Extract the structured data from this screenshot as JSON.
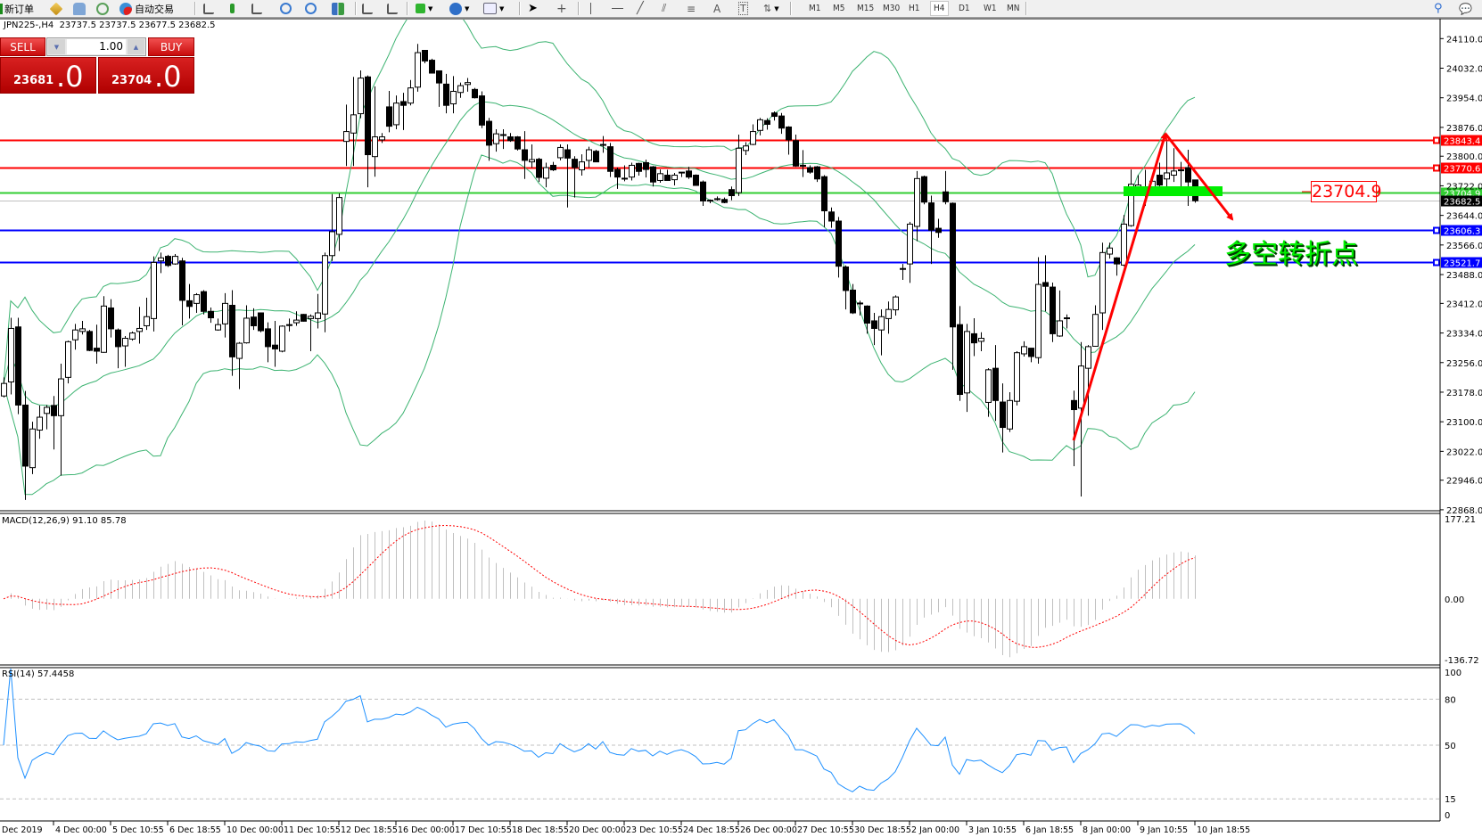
{
  "toolbar": {
    "new_order": "新订单",
    "auto_trade": "自动交易",
    "timeframes": [
      "M1",
      "M5",
      "M15",
      "M30",
      "H1",
      "H4",
      "D1",
      "W1",
      "MN"
    ],
    "active_timeframe": "H4",
    "icons": [
      "new-order-icon",
      "market-watch-icon",
      "navigator-icon",
      "signal-icon",
      "auto-trading-icon",
      "bar-chart-icon",
      "candlestick-icon",
      "line-chart-icon",
      "zoom-in-icon",
      "zoom-out-icon",
      "tile-windows-icon",
      "auto-scroll-icon",
      "chart-shift-icon",
      "indicators-icon",
      "periods-icon",
      "templates-icon",
      "cursor-icon",
      "crosshair-icon",
      "vertical-line-icon",
      "horizontal-line-icon",
      "trendline-icon",
      "equidistant-channel-icon",
      "fibonacci-icon",
      "text-icon",
      "text-label-icon",
      "arrows-icon",
      "search-icon",
      "chat-icon"
    ]
  },
  "chart": {
    "title": "JPN225-,H4  23737.5 23737.5 23677.5 23682.5"
  },
  "trade_panel": {
    "sell_label": "SELL",
    "buy_label": "BUY",
    "lot": "1.00",
    "sell_price_main": "23681",
    "sell_price_frac": ".0",
    "buy_price_main": "23704",
    "buy_price_frac": ".0",
    "color": "#d01010"
  },
  "annotations": {
    "text": "多空转折点",
    "price_label": "23704.9",
    "arrow_color": "#ff0000",
    "zone_color": "#00ee00"
  },
  "chart_data": {
    "type": "candlestick",
    "symbol": "JPN225-",
    "timeframe": "H4",
    "ohlc_header": {
      "open": 23737.5,
      "high": 23737.5,
      "low": 23677.5,
      "close": 23682.5
    },
    "ylim": [
      22868.0,
      24140.0
    ],
    "y_ticks": [
      "24110.0",
      "24032.0",
      "23954.0",
      "23876.0",
      "23800.0",
      "23722.0",
      "23644.0",
      "23566.0",
      "23488.0",
      "23412.0",
      "23334.0",
      "23256.0",
      "23178.0",
      "23100.0",
      "23022.0",
      "22946.0",
      "22868.0"
    ],
    "x_ticks": [
      "Dec 2019",
      "4 Dec 00:00",
      "5 Dec 10:55",
      "6 Dec 18:55",
      "10 Dec 00:00",
      "11 Dec 10:55",
      "12 Dec 18:55",
      "16 Dec 00:00",
      "17 Dec 10:55",
      "18 Dec 18:55",
      "20 Dec 00:00",
      "23 Dec 10:55",
      "24 Dec 18:55",
      "26 Dec 00:00",
      "27 Dec 10:55",
      "30 Dec 18:55",
      "2 Jan 00:00",
      "3 Jan 10:55",
      "6 Jan 18:55",
      "8 Jan 00:00",
      "9 Jan 10:55",
      "10 Jan 18:55"
    ],
    "candle_format": [
      "open",
      "high",
      "low",
      "close"
    ],
    "candles": [
      [
        23168,
        23217,
        23164,
        23201
      ],
      [
        23205,
        23374,
        23172,
        23346
      ],
      [
        23350,
        23374,
        23120,
        23144
      ],
      [
        23144,
        23181,
        22894,
        22983
      ],
      [
        22979,
        23100,
        22962,
        23081
      ],
      [
        23078,
        23143,
        23055,
        23112
      ],
      [
        23122,
        23144,
        23080,
        23138
      ],
      [
        23143,
        23168,
        23027,
        23116
      ],
      [
        23116,
        23253,
        22958,
        23213
      ],
      [
        23217,
        23314,
        23201,
        23311
      ],
      [
        23316,
        23358,
        23290,
        23342
      ],
      [
        23338,
        23366,
        23330,
        23345
      ],
      [
        23338,
        23342,
        23286,
        23288
      ],
      [
        23294,
        23356,
        23253,
        23286
      ],
      [
        23283,
        23431,
        23282,
        23405
      ],
      [
        23400,
        23423,
        23322,
        23345
      ],
      [
        23342,
        23346,
        23241,
        23298
      ],
      [
        23300,
        23326,
        23245,
        23320
      ],
      [
        23318,
        23338,
        23314,
        23334
      ],
      [
        23338,
        23403,
        23306,
        23346
      ],
      [
        23353,
        23427,
        23342,
        23377
      ],
      [
        23372,
        23536,
        23338,
        23520
      ],
      [
        23524,
        23546,
        23492,
        23532
      ],
      [
        23536,
        23540,
        23508,
        23512
      ],
      [
        23516,
        23542,
        23514,
        23536
      ],
      [
        23524,
        23532,
        23354,
        23420
      ],
      [
        23419,
        23463,
        23372,
        23404
      ],
      [
        23412,
        23439,
        23387,
        23435
      ],
      [
        23443,
        23447,
        23383,
        23391
      ],
      [
        23391,
        23401,
        23361,
        23374
      ],
      [
        23342,
        23372,
        23340,
        23356
      ],
      [
        23358,
        23439,
        23322,
        23412
      ],
      [
        23407,
        23447,
        23221,
        23271
      ],
      [
        23267,
        23310,
        23186,
        23307
      ],
      [
        23308,
        23407,
        23306,
        23373
      ],
      [
        23376,
        23399,
        23342,
        23353
      ],
      [
        23387,
        23388,
        23336,
        23340
      ],
      [
        23345,
        23362,
        23257,
        23298
      ],
      [
        23302,
        23366,
        23245,
        23292
      ],
      [
        23286,
        23354,
        23283,
        23352
      ],
      [
        23356,
        23372,
        23338,
        23354
      ],
      [
        23361,
        23391,
        23353,
        23368
      ],
      [
        23383,
        23384,
        23364,
        23365
      ],
      [
        23372,
        23383,
        23286,
        23378
      ],
      [
        23372,
        23437,
        23346,
        23387
      ],
      [
        23384,
        23546,
        23336,
        23538
      ],
      [
        23538,
        23700,
        23524,
        23601
      ],
      [
        23594,
        23702,
        23550,
        23691
      ],
      [
        23839,
        23936,
        23774,
        23865
      ],
      [
        23861,
        24009,
        23774,
        23909
      ],
      [
        23912,
        24026,
        23900,
        24006
      ],
      [
        24009,
        24013,
        23718,
        23804
      ],
      [
        23799,
        23984,
        23746,
        23851
      ],
      [
        23843,
        23861,
        23835,
        23851
      ],
      [
        23930,
        23972,
        23863,
        23879
      ],
      [
        23883,
        23960,
        23871,
        23940
      ],
      [
        23944,
        23967,
        23869,
        23934
      ],
      [
        23940,
        24001,
        23934,
        23980
      ],
      [
        23982,
        24096,
        23970,
        24073
      ],
      [
        24079,
        24079,
        24045,
        24051
      ],
      [
        24053,
        24057,
        24018,
        24019
      ],
      [
        24025,
        24025,
        23930,
        23993
      ],
      [
        23990,
        24017,
        23913,
        23934
      ],
      [
        23938,
        24011,
        23913,
        23971
      ],
      [
        23968,
        23994,
        23954,
        23986
      ],
      [
        23989,
        24006,
        23970,
        23994
      ],
      [
        23976,
        23980,
        23952,
        23954
      ],
      [
        23959,
        23971,
        23874,
        23882
      ],
      [
        23892,
        23901,
        23788,
        23829
      ],
      [
        23833,
        23871,
        23812,
        23859
      ],
      [
        23857,
        23871,
        23819,
        23855
      ],
      [
        23851,
        23861,
        23838,
        23841
      ],
      [
        23851,
        23853,
        23815,
        23819
      ],
      [
        23817,
        23866,
        23740,
        23789
      ],
      [
        23785,
        23831,
        23770,
        23791
      ],
      [
        23792,
        23796,
        23732,
        23744
      ],
      [
        23742,
        23783,
        23718,
        23770
      ],
      [
        23776,
        23785,
        23761,
        23764
      ],
      [
        23796,
        23831,
        23789,
        23823
      ],
      [
        23817,
        23831,
        23665,
        23795
      ],
      [
        23792,
        23800,
        23691,
        23770
      ],
      [
        23764,
        23805,
        23749,
        23785
      ],
      [
        23789,
        23825,
        23770,
        23817
      ],
      [
        23813,
        23817,
        23784,
        23785
      ],
      [
        23831,
        23853,
        23809,
        23829
      ],
      [
        23825,
        23835,
        23745,
        23760
      ],
      [
        23765,
        23770,
        23714,
        23745
      ],
      [
        23742,
        23776,
        23734,
        23741
      ],
      [
        23745,
        23783,
        23736,
        23776
      ],
      [
        23781,
        23783,
        23749,
        23760
      ],
      [
        23783,
        23791,
        23744,
        23765
      ],
      [
        23772,
        23774,
        23720,
        23732
      ],
      [
        23736,
        23765,
        23730,
        23754
      ],
      [
        23750,
        23764,
        23736,
        23736
      ],
      [
        23738,
        23756,
        23723,
        23750
      ],
      [
        23758,
        23758,
        23745,
        23757
      ],
      [
        23761,
        23772,
        23740,
        23745
      ],
      [
        23750,
        23752,
        23722,
        23723
      ],
      [
        23732,
        23736,
        23669,
        23682
      ],
      [
        23684,
        23686,
        23676,
        23683
      ],
      [
        23688,
        23694,
        23683,
        23687
      ],
      [
        23686,
        23691,
        23676,
        23678
      ],
      [
        23712,
        23720,
        23684,
        23696
      ],
      [
        23704,
        23857,
        23695,
        23821
      ],
      [
        23815,
        23837,
        23803,
        23827
      ],
      [
        23831,
        23884,
        23829,
        23865
      ],
      [
        23868,
        23901,
        23855,
        23896
      ],
      [
        23894,
        23900,
        23870,
        23884
      ],
      [
        23914,
        23918,
        23894,
        23905
      ],
      [
        23906,
        23914,
        23859,
        23874
      ],
      [
        23877,
        23879,
        23804,
        23843
      ],
      [
        23841,
        23857,
        23772,
        23774
      ],
      [
        23776,
        23816,
        23745,
        23774
      ],
      [
        23770,
        23776,
        23754,
        23758
      ],
      [
        23772,
        23774,
        23732,
        23740
      ],
      [
        23746,
        23750,
        23613,
        23656
      ],
      [
        23653,
        23665,
        23611,
        23629
      ],
      [
        23629,
        23640,
        23480,
        23510
      ],
      [
        23508,
        23512,
        23396,
        23446
      ],
      [
        23447,
        23463,
        23384,
        23387
      ],
      [
        23413,
        23419,
        23380,
        23412
      ],
      [
        23405,
        23407,
        23332,
        23360
      ],
      [
        23366,
        23387,
        23302,
        23346
      ],
      [
        23342,
        23396,
        23275,
        23377
      ],
      [
        23372,
        23417,
        23332,
        23396
      ],
      [
        23395,
        23433,
        23380,
        23429
      ],
      [
        23502,
        23516,
        23474,
        23504
      ],
      [
        23516,
        23627,
        23466,
        23621
      ],
      [
        23615,
        23761,
        23576,
        23741
      ],
      [
        23746,
        23749,
        23673,
        23679
      ],
      [
        23677,
        23696,
        23516,
        23605
      ],
      [
        23610,
        23635,
        23585,
        23599
      ],
      [
        23706,
        23761,
        23673,
        23680
      ],
      [
        23676,
        23678,
        23237,
        23350
      ],
      [
        23356,
        23405,
        23155,
        23172
      ],
      [
        23176,
        23358,
        23126,
        23338
      ],
      [
        23332,
        23373,
        23273,
        23308
      ],
      [
        23312,
        23336,
        23286,
        23320
      ],
      [
        23151,
        23241,
        23113,
        23237
      ],
      [
        23241,
        23302,
        23102,
        23156
      ],
      [
        23152,
        23201,
        23019,
        23085
      ],
      [
        23081,
        23178,
        23073,
        23156
      ],
      [
        23154,
        23286,
        23143,
        23282
      ],
      [
        23279,
        23312,
        23272,
        23298
      ],
      [
        23294,
        23294,
        23257,
        23272
      ],
      [
        23269,
        23534,
        23253,
        23462
      ],
      [
        23467,
        23539,
        23391,
        23457
      ],
      [
        23455,
        23467,
        23310,
        23332
      ],
      [
        23326,
        23446,
        23324,
        23366
      ],
      [
        23374,
        23383,
        23346,
        23373
      ],
      [
        23156,
        23182,
        22983,
        23132
      ],
      [
        23136,
        23310,
        22903,
        23247
      ],
      [
        23241,
        23302,
        23116,
        23298
      ],
      [
        23299,
        23407,
        23298,
        23383
      ],
      [
        23387,
        23572,
        23342,
        23546
      ],
      [
        23542,
        23572,
        23530,
        23558
      ],
      [
        23532,
        23534,
        23485,
        23516
      ],
      [
        23513,
        23645,
        23510,
        23621
      ],
      [
        23617,
        23765,
        23614,
        23726
      ],
      [
        23710,
        23750,
        23698,
        23724
      ],
      [
        23719,
        23764,
        23669,
        23698
      ],
      [
        23718,
        23750,
        23710,
        23734
      ],
      [
        23750,
        23783,
        23718,
        23724
      ],
      [
        23740,
        23839,
        23718,
        23756
      ],
      [
        23750,
        23821,
        23732,
        23761
      ],
      [
        23764,
        23785,
        23716,
        23762
      ],
      [
        23770,
        23817,
        23669,
        23732
      ],
      [
        23737.5,
        23737.5,
        23677.5,
        23682.5
      ]
    ],
    "horizontal_lines": [
      {
        "price": 23843.4,
        "label": "23843.4",
        "color": "#ff0000"
      },
      {
        "price": 23770.6,
        "label": "23770.6",
        "color": "#ff0000"
      },
      {
        "price": 23704.9,
        "label": "23704.9",
        "color": "#32cd32"
      },
      {
        "price": 23682.5,
        "label": "23682.5",
        "color": "#c0c0c0",
        "tag_color": "#000000"
      },
      {
        "price": 23606.3,
        "label": "23606.3",
        "color": "#0000ff"
      },
      {
        "price": 23521.7,
        "label": "23521.7",
        "color": "#0000ff"
      }
    ],
    "bollinger_color": "#3cb371",
    "macd": {
      "label": "MACD(12,26,9) 91.10 85.78",
      "ylim": [
        -136.72,
        177.21
      ],
      "y_ticks": [
        "177.21",
        "0.00",
        "-136.72"
      ],
      "histogram_color": "#c0c0c0",
      "signal_color": "#ff0000"
    },
    "rsi": {
      "label": "RSI(14) 57.4458",
      "ylim": [
        0,
        100
      ],
      "levels": [
        80,
        50,
        15
      ],
      "y_ticks": [
        "100",
        "80",
        "50",
        "15",
        "0"
      ],
      "color": "#1e90ff"
    }
  }
}
